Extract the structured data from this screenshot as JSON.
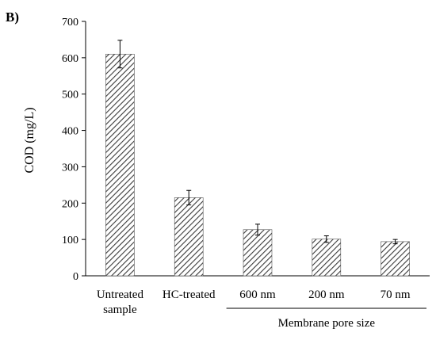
{
  "panel_label": "B)",
  "chart_data": {
    "type": "bar",
    "title": "",
    "xlabel": "",
    "ylabel": "COD (mg/L)",
    "ylim": [
      0,
      700
    ],
    "yticks": [
      0,
      100,
      200,
      300,
      400,
      500,
      600,
      700
    ],
    "grid": false,
    "legend": "none",
    "categories": [
      "Untreated sample",
      "HC-treated",
      "600 nm",
      "200 nm",
      "70 nm"
    ],
    "category_lines": [
      [
        "Untreated",
        "sample"
      ],
      [
        "HC-treated"
      ],
      [
        "600 nm"
      ],
      [
        "200 nm"
      ],
      [
        "70 nm"
      ]
    ],
    "values": [
      610,
      215,
      127,
      101,
      94
    ],
    "errors": [
      38,
      20,
      15,
      9,
      6
    ],
    "bar_fill": "diagonal-hatch",
    "bar_color": "#555555",
    "group_annotation": {
      "label": "Membrane pore size",
      "categories": [
        "600 nm",
        "200 nm",
        "70 nm"
      ]
    }
  }
}
